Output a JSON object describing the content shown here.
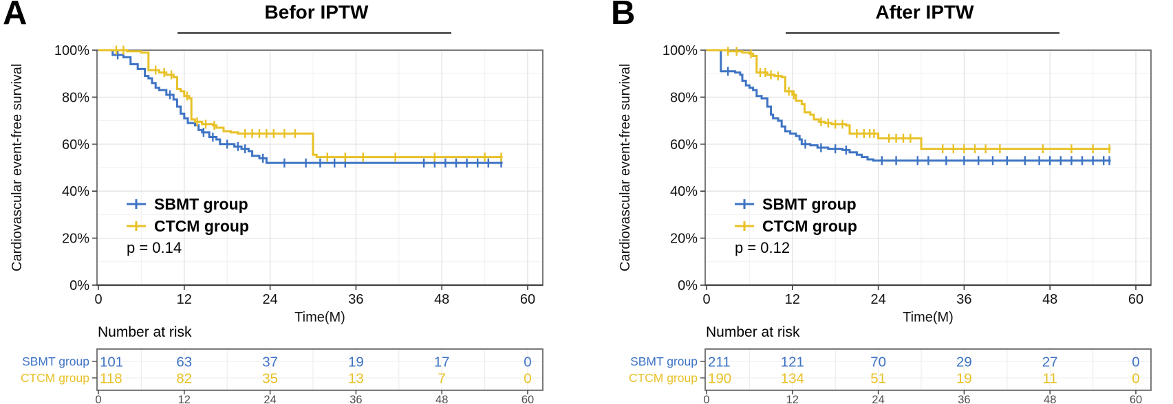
{
  "figure": {
    "y_axis_label": "Cardiovascular event-free survival",
    "x_axis_label": "Time(M)",
    "risk_table_header": "Number at risk",
    "x_ticks": [
      0,
      12,
      24,
      36,
      48,
      60
    ],
    "y_tick_labels": [
      "100%",
      "80%",
      "60%",
      "40%",
      "20%",
      "0%"
    ],
    "y_tick_pcts": [
      100,
      80,
      60,
      40,
      20,
      0
    ],
    "colors": {
      "sbmt_blue": "#3E73C4",
      "ctcm_yellow": "#E8C127",
      "grid_major": "#e2e2e2",
      "grid_minor": "#f1f1f1",
      "frame_gray": "#6b6b6b",
      "axis_dark": "#3f3f3f",
      "tick_label_gray": "#4d4d4d"
    }
  },
  "panels": [
    {
      "letter": "A",
      "title": "Befor IPTW",
      "p_value_label": "p = 0.14",
      "legend_items": [
        {
          "label": "SBMT group",
          "color_key": "sbmt_blue"
        },
        {
          "label": "CTCM group",
          "color_key": "ctcm_yellow"
        }
      ]
    },
    {
      "letter": "B",
      "title": "After IPTW",
      "p_value_label": "p = 0.12",
      "legend_items": [
        {
          "label": "SBMT group",
          "color_key": "sbmt_blue"
        },
        {
          "label": "CTCM group",
          "color_key": "ctcm_yellow"
        }
      ]
    }
  ],
  "chart_data": [
    {
      "type": "line",
      "subtype": "kaplan-meier-step",
      "title": "Befor IPTW",
      "xlabel": "Time(M)",
      "ylabel": "Cardiovascular event-free survival",
      "xlim": [
        0,
        62
      ],
      "ylim": [
        0,
        100
      ],
      "x_ticks": [
        0,
        12,
        24,
        36,
        48,
        60
      ],
      "grid": true,
      "legend_position": "inside-left",
      "p_value": "p = 0.14",
      "series": [
        {
          "name": "SBMT group",
          "color": "#3E73C4",
          "end_time": 56.5,
          "steps": [
            [
              0,
              100
            ],
            [
              2,
              98
            ],
            [
              3.5,
              97
            ],
            [
              4.5,
              94
            ],
            [
              5.5,
              92
            ],
            [
              6.5,
              89
            ],
            [
              7,
              88
            ],
            [
              7.5,
              86
            ],
            [
              8,
              84
            ],
            [
              8.5,
              83
            ],
            [
              9.5,
              81
            ],
            [
              10.5,
              79
            ],
            [
              11,
              76
            ],
            [
              11.5,
              73
            ],
            [
              12,
              71
            ],
            [
              12.5,
              69
            ],
            [
              13.5,
              68
            ],
            [
              14,
              66
            ],
            [
              14.5,
              65
            ],
            [
              15.5,
              63
            ],
            [
              16.5,
              62
            ],
            [
              17,
              60
            ],
            [
              19,
              59
            ],
            [
              20,
              58
            ],
            [
              21,
              57
            ],
            [
              21.5,
              55
            ],
            [
              22.5,
              54
            ],
            [
              23.5,
              52
            ]
          ],
          "censor_times": [
            2.7,
            10,
            14.7,
            16,
            18,
            19.5,
            20.5,
            23,
            26,
            29,
            31,
            33,
            34.5,
            45.5,
            47,
            48.5,
            50,
            51.5,
            53,
            54.5,
            56.3
          ]
        },
        {
          "name": "CTCM group",
          "color": "#E8C127",
          "end_time": 56.5,
          "steps": [
            [
              0,
              100
            ],
            [
              4,
              99.5
            ],
            [
              6,
              99
            ],
            [
              7,
              91.5
            ],
            [
              8.5,
              90.5
            ],
            [
              9.5,
              89.5
            ],
            [
              10.5,
              88.5
            ],
            [
              11,
              83.5
            ],
            [
              11.5,
              82.5
            ],
            [
              12,
              80.5
            ],
            [
              12.7,
              79.5
            ],
            [
              13,
              70.5
            ],
            [
              13.5,
              69.5
            ],
            [
              14.5,
              68.5
            ],
            [
              16,
              68
            ],
            [
              16.5,
              67
            ],
            [
              17.5,
              65.5
            ],
            [
              18.5,
              65
            ],
            [
              19.5,
              64.5
            ],
            [
              30,
              55.5
            ],
            [
              30.5,
              54.5
            ]
          ],
          "censor_times": [
            2.5,
            3.5,
            8,
            9.2,
            10.2,
            12.4,
            13.8,
            15,
            16.2,
            20.5,
            21.5,
            22.5,
            23.5,
            24.5,
            26,
            27.5,
            32,
            34.5,
            37,
            41.5,
            47,
            54,
            56.3
          ]
        }
      ],
      "number_at_risk": {
        "times": [
          0,
          12,
          24,
          36,
          48,
          60
        ],
        "rows": [
          {
            "name": "SBMT group",
            "values": [
              101,
              63,
              37,
              19,
              17,
              0
            ]
          },
          {
            "name": "CTCM group",
            "values": [
              118,
              82,
              35,
              13,
              7,
              0
            ]
          }
        ]
      }
    },
    {
      "type": "line",
      "subtype": "kaplan-meier-step",
      "title": "After IPTW",
      "xlabel": "Time(M)",
      "ylabel": "Cardiovascular event-free survival",
      "xlim": [
        0,
        62
      ],
      "ylim": [
        0,
        100
      ],
      "x_ticks": [
        0,
        12,
        24,
        36,
        48,
        60
      ],
      "grid": true,
      "legend_position": "inside-left",
      "p_value": "p = 0.12",
      "series": [
        {
          "name": "SBMT group",
          "color": "#3E73C4",
          "end_time": 56.5,
          "steps": [
            [
              0,
              100
            ],
            [
              2,
              91
            ],
            [
              4,
              90.5
            ],
            [
              4.7,
              89.5
            ],
            [
              5,
              87
            ],
            [
              5.5,
              85
            ],
            [
              6,
              84
            ],
            [
              6.5,
              83
            ],
            [
              7,
              80.5
            ],
            [
              7.7,
              79.5
            ],
            [
              8.5,
              76
            ],
            [
              9,
              72.5
            ],
            [
              9.3,
              71
            ],
            [
              10,
              70
            ],
            [
              10.5,
              67.5
            ],
            [
              11,
              65.5
            ],
            [
              11.7,
              64.5
            ],
            [
              12.5,
              63.5
            ],
            [
              13,
              62
            ],
            [
              13.3,
              60
            ],
            [
              14.5,
              59.5
            ],
            [
              15.5,
              58.5
            ],
            [
              17,
              58
            ],
            [
              19,
              57.5
            ],
            [
              20,
              56.5
            ],
            [
              21,
              55.5
            ],
            [
              21.7,
              54.5
            ],
            [
              22.5,
              53.5
            ],
            [
              23.3,
              53
            ]
          ],
          "censor_times": [
            3,
            13.8,
            16,
            18,
            19.5,
            24.5,
            26.5,
            29.5,
            31,
            33.5,
            36,
            38,
            40,
            42,
            44.5,
            46.5,
            48,
            49.5,
            51,
            52.5,
            54,
            55.5,
            56.3
          ]
        },
        {
          "name": "CTCM group",
          "color": "#E8C127",
          "end_time": 56.5,
          "steps": [
            [
              0,
              100
            ],
            [
              3,
              99.5
            ],
            [
              5,
              99
            ],
            [
              6,
              98.5
            ],
            [
              6.5,
              97.5
            ],
            [
              7,
              90.5
            ],
            [
              8.5,
              89.5
            ],
            [
              9.5,
              89
            ],
            [
              10.5,
              88.5
            ],
            [
              11,
              82.5
            ],
            [
              12,
              81
            ],
            [
              12.5,
              78.5
            ],
            [
              13.3,
              77
            ],
            [
              13.7,
              73.5
            ],
            [
              14.5,
              72.5
            ],
            [
              15,
              70.5
            ],
            [
              15.7,
              69.5
            ],
            [
              16.5,
              69
            ],
            [
              17.5,
              68.5
            ],
            [
              19.5,
              68
            ],
            [
              20,
              64.5
            ],
            [
              24,
              62.5
            ],
            [
              30,
              58
            ]
          ],
          "censor_times": [
            3,
            4.2,
            6.2,
            7.5,
            8.2,
            9,
            10,
            11.5,
            12.2,
            16,
            17,
            18,
            19,
            21,
            22,
            22.8,
            23.4,
            25.5,
            26.5,
            27.5,
            28.5,
            33,
            34.5,
            36,
            37.5,
            39,
            41,
            47,
            51,
            54,
            56.3
          ]
        }
      ],
      "number_at_risk": {
        "times": [
          0,
          12,
          24,
          36,
          48,
          60
        ],
        "rows": [
          {
            "name": "SBMT group",
            "values": [
              211,
              121,
              70,
              29,
              27,
              0
            ]
          },
          {
            "name": "CTCM group",
            "values": [
              190,
              134,
              51,
              19,
              11,
              0
            ]
          }
        ]
      }
    }
  ]
}
